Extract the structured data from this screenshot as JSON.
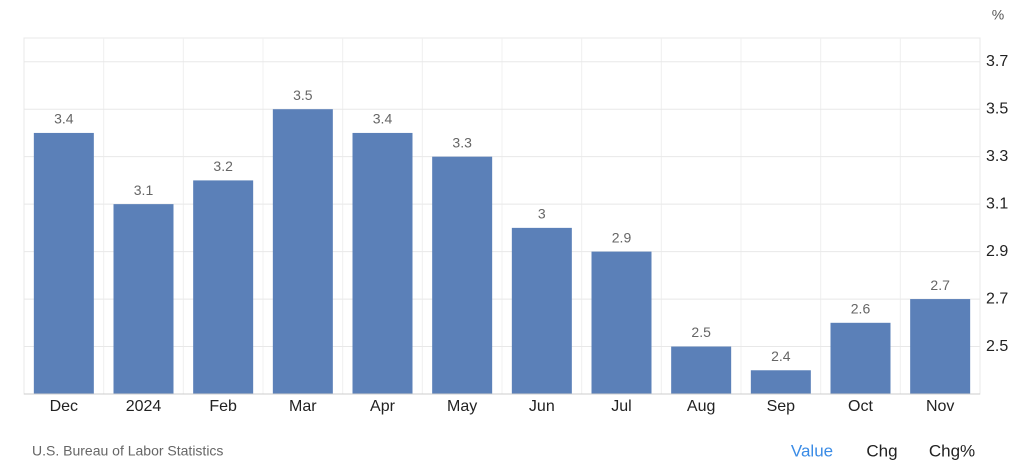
{
  "chart_data": {
    "type": "bar",
    "unit": "%",
    "categories": [
      "Dec",
      "2024",
      "Feb",
      "Mar",
      "Apr",
      "May",
      "Jun",
      "Jul",
      "Aug",
      "Sep",
      "Oct",
      "Nov"
    ],
    "values": [
      3.4,
      3.1,
      3.2,
      3.5,
      3.4,
      3.3,
      3,
      2.9,
      2.5,
      2.4,
      2.6,
      2.7
    ],
    "color": "#5b80b8",
    "ylim": [
      2.3,
      3.8
    ],
    "yticks": [
      2.5,
      2.7,
      2.9,
      3.1,
      3.3,
      3.5,
      3.7
    ],
    "grid": true
  },
  "footer": {
    "source": "U.S. Bureau of Labor Statistics",
    "tabs": [
      "Value",
      "Chg",
      "Chg%"
    ]
  }
}
